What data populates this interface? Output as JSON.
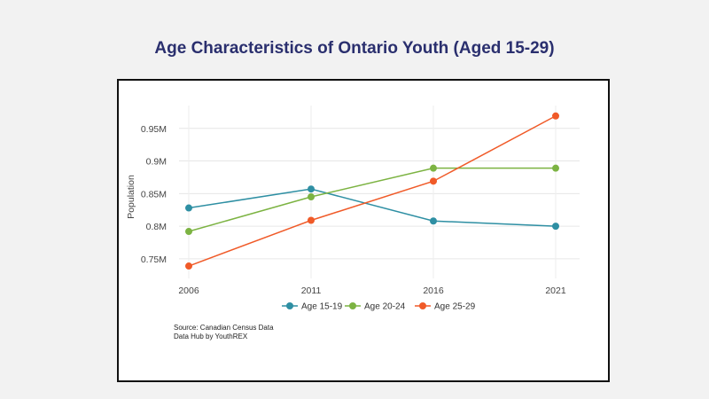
{
  "slide": {
    "title": "Age Characteristics of Ontario Youth (Aged 15-29)"
  },
  "chart_data": {
    "type": "line",
    "title": "",
    "xlabel": "",
    "ylabel": "Population",
    "categories": [
      "2006",
      "2011",
      "2016",
      "2021"
    ],
    "ylim": [
      0.72,
      0.985
    ],
    "yticks": [
      0.75,
      0.8,
      0.85,
      0.9,
      0.95
    ],
    "ytick_labels": [
      "0.75M",
      "0.8M",
      "0.85M",
      "0.9M",
      "0.95M"
    ],
    "grid": true,
    "legend_position": "bottom",
    "series": [
      {
        "name": "Age 15-19",
        "color": "#2e8fa3",
        "values": [
          0.828,
          0.857,
          0.808,
          0.8
        ]
      },
      {
        "name": "Age 20-24",
        "color": "#7cb342",
        "values": [
          0.792,
          0.845,
          0.889,
          0.889
        ]
      },
      {
        "name": "Age 25-29",
        "color": "#f05a28",
        "values": [
          0.739,
          0.809,
          0.869,
          0.969
        ]
      }
    ],
    "source_lines": [
      "Source: Canadian Census Data",
      "Data Hub by YouthREX"
    ]
  }
}
